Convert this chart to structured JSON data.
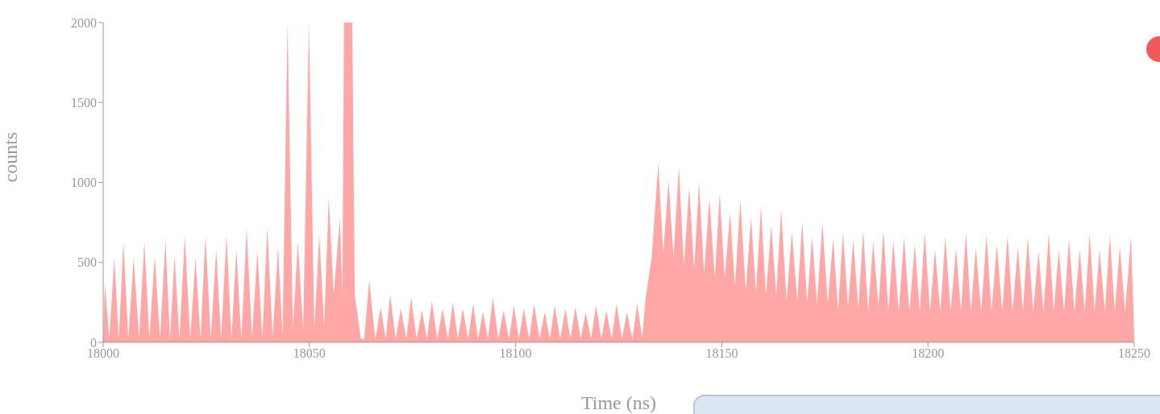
{
  "chart_data": {
    "type": "area",
    "xlabel": "Time (ns)",
    "ylabel": "counts",
    "color": "#ffa6a6",
    "xlim": [
      18000,
      18250
    ],
    "ylim": [
      0,
      2000
    ],
    "xticks": [
      18000,
      18050,
      18100,
      18150,
      18200,
      18250
    ],
    "yticks": [
      0,
      500,
      1000,
      1500,
      2000
    ],
    "x": [
      18000.0,
      18000.4,
      18001.5,
      18002.7,
      18003.8,
      18004.9,
      18006.1,
      18007.4,
      18008.7,
      18010.0,
      18011.2,
      18012.5,
      18013.8,
      18015.1,
      18016.2,
      18017.3,
      18018.5,
      18019.8,
      18021.1,
      18022.4,
      18023.6,
      18024.8,
      18026.1,
      18027.4,
      18028.6,
      18029.9,
      18031.1,
      18032.3,
      18033.5,
      18034.8,
      18036.1,
      18037.4,
      18038.6,
      18039.8,
      18041.1,
      18042.4,
      18043.5,
      18044.7,
      18046.0,
      18047.2,
      18048.5,
      18049.9,
      18051.2,
      18052.4,
      18053.6,
      18054.7,
      18055.9,
      18057.4,
      18058.0,
      18058.4,
      18060.4,
      18061.0,
      18062.5,
      18063.3,
      18064.5,
      18066.0,
      18067.3,
      18068.5,
      18069.6,
      18070.9,
      18072.2,
      18073.5,
      18074.7,
      18076.0,
      18077.3,
      18078.5,
      18079.7,
      18081.0,
      18082.3,
      18083.6,
      18084.8,
      18086.0,
      18087.2,
      18088.5,
      18089.7,
      18090.9,
      18092.1,
      18093.3,
      18094.5,
      18095.8,
      18097.1,
      18098.4,
      18099.6,
      18100.8,
      18102.0,
      18103.3,
      18104.5,
      18105.8,
      18107.1,
      18108.3,
      18109.5,
      18110.8,
      18112.1,
      18113.3,
      18114.5,
      18115.8,
      18117.0,
      18118.3,
      18119.5,
      18120.8,
      18122.0,
      18123.3,
      18124.5,
      18125.8,
      18127.0,
      18128.3,
      18129.5,
      18130.7,
      18131.5,
      18133.0,
      18134.6,
      18135.8,
      18137.1,
      18138.3,
      18139.6,
      18140.8,
      18142.1,
      18143.3,
      18144.5,
      18145.7,
      18147.0,
      18148.3,
      18149.5,
      18150.7,
      18152.0,
      18153.2,
      18154.5,
      18155.8,
      18157.1,
      18158.3,
      18159.5,
      18160.7,
      18162.0,
      18163.2,
      18164.4,
      18165.7,
      18167.0,
      18168.3,
      18169.5,
      18170.7,
      18171.9,
      18173.1,
      18174.4,
      18175.7,
      18177.0,
      18178.2,
      18179.4,
      18180.6,
      18181.9,
      18183.1,
      18184.3,
      18185.5,
      18186.7,
      18188.0,
      18189.2,
      18190.4,
      18191.6,
      18192.9,
      18194.2,
      18195.5,
      18196.8,
      18198.0,
      18199.2,
      18200.5,
      18201.7,
      18203.0,
      18204.2,
      18205.5,
      18206.8,
      18208.0,
      18209.2,
      18210.4,
      18211.6,
      18212.9,
      18214.2,
      18215.4,
      18216.7,
      18218.0,
      18219.3,
      18220.5,
      18221.8,
      18223.0,
      18224.2,
      18225.5,
      18226.8,
      18228.0,
      18229.3,
      18230.5,
      18231.7,
      18233.0,
      18234.2,
      18235.5,
      18236.8,
      18238.0,
      18239.2,
      18240.4,
      18241.6,
      18242.9,
      18244.1,
      18245.3,
      18246.5,
      18247.8,
      18249.2,
      18249.9,
      18250.0
    ],
    "values": [
      20,
      370,
      20,
      530,
      20,
      630,
      20,
      530,
      20,
      630,
      20,
      540,
      20,
      640,
      20,
      540,
      20,
      670,
      20,
      530,
      20,
      670,
      20,
      580,
      20,
      670,
      20,
      580,
      20,
      710,
      30,
      570,
      30,
      720,
      30,
      600,
      40,
      2000,
      80,
      630,
      80,
      2000,
      80,
      670,
      100,
      910,
      300,
      780,
      300,
      2000,
      2000,
      300,
      20,
      20,
      390,
      20,
      220,
      20,
      300,
      20,
      210,
      20,
      280,
      20,
      200,
      20,
      260,
      20,
      210,
      20,
      250,
      20,
      210,
      20,
      240,
      20,
      190,
      20,
      280,
      20,
      200,
      20,
      230,
      20,
      210,
      20,
      240,
      20,
      190,
      20,
      230,
      20,
      210,
      20,
      220,
      20,
      190,
      20,
      230,
      20,
      200,
      20,
      240,
      20,
      190,
      20,
      240,
      30,
      270,
      530,
      1120,
      560,
      1010,
      530,
      1100,
      480,
      970,
      460,
      1000,
      430,
      900,
      400,
      930,
      400,
      810,
      350,
      890,
      320,
      780,
      310,
      850,
      290,
      730,
      290,
      830,
      260,
      690,
      260,
      750,
      250,
      660,
      240,
      750,
      240,
      650,
      200,
      690,
      220,
      640,
      210,
      700,
      190,
      630,
      220,
      700,
      190,
      640,
      190,
      660,
      190,
      610,
      190,
      690,
      190,
      580,
      190,
      660,
      190,
      590,
      190,
      690,
      190,
      590,
      190,
      670,
      190,
      610,
      190,
      670,
      190,
      600,
      190,
      660,
      190,
      570,
      190,
      680,
      190,
      580,
      190,
      650,
      190,
      580,
      190,
      680,
      190,
      580,
      190,
      670,
      190,
      600,
      190,
      660,
      150,
      0
    ]
  }
}
